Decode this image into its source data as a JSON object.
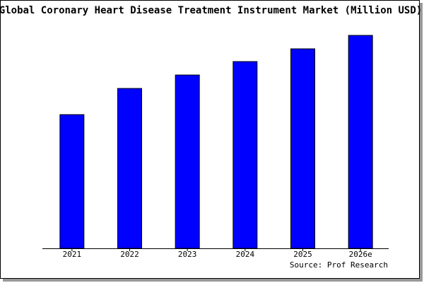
{
  "chart_data": {
    "type": "bar",
    "title": "Global Coronary Heart Disease Treatment Instrument Market (Million USD)",
    "source": "Source: Prof Research",
    "categories": [
      "2021",
      "2022",
      "2023",
      "2024",
      "2025",
      "2026e"
    ],
    "values": [
      189,
      226,
      245,
      264,
      282,
      301
    ],
    "color": "#0000ff",
    "ylim": [
      0,
      301
    ]
  }
}
